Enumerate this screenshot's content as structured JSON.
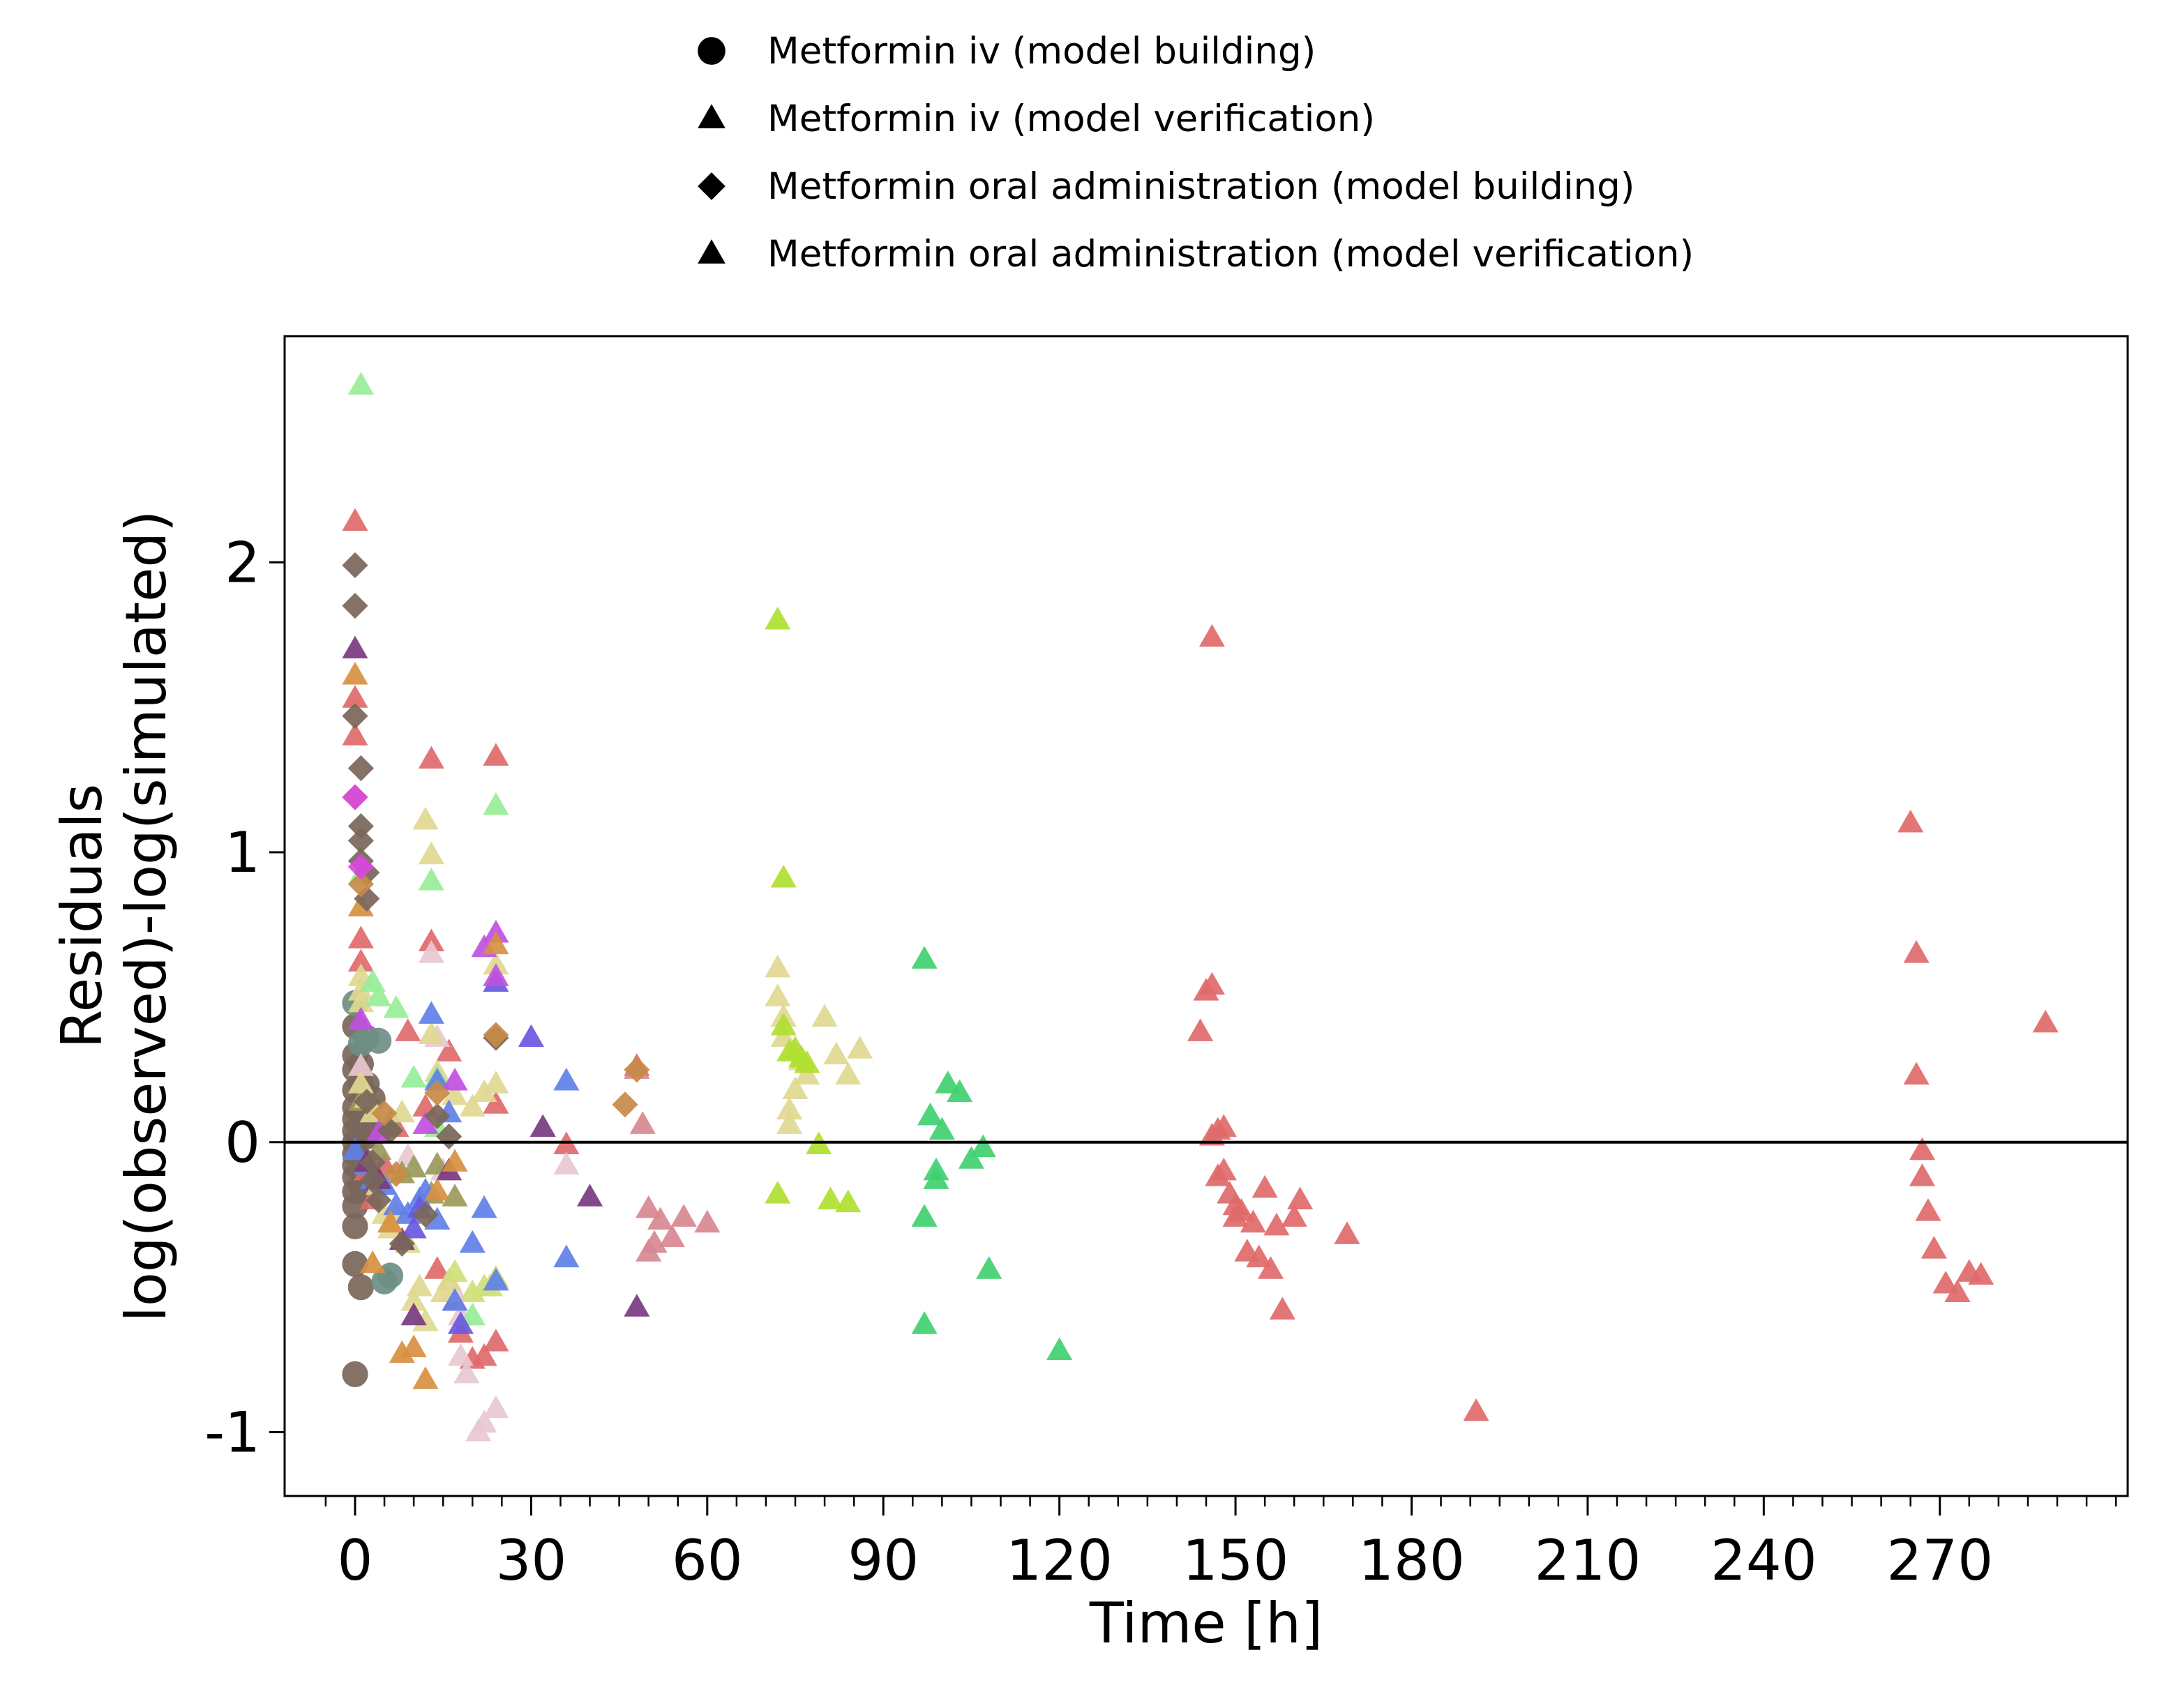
{
  "chart_data": {
    "type": "scatter",
    "title": "",
    "xlabel": "Time [h]",
    "ylabel_lines": [
      "Residuals",
      "log(observed)-log(simulated)"
    ],
    "xlim": [
      -12,
      302
    ],
    "ylim": [
      -1.22,
      2.78
    ],
    "xticks": [
      0,
      30,
      60,
      90,
      120,
      150,
      180,
      210,
      240,
      270
    ],
    "xtick_labels": [
      "0",
      "30",
      "60",
      "90",
      "120",
      "150",
      "180",
      "210",
      "240",
      "270"
    ],
    "xminor_step": 5,
    "yticks": [
      -1,
      0,
      1,
      2
    ],
    "ytick_labels": [
      "-1",
      "0",
      "1",
      "2"
    ],
    "reference_line_y": 0,
    "grid": false,
    "legend_placement": "top-center, above plot",
    "legend": [
      {
        "marker": "circle",
        "label": "Metformin iv (model building)"
      },
      {
        "marker": "triangle",
        "label": "Metformin iv (model verification)"
      },
      {
        "marker": "diamond",
        "label": "Metformin oral administration (model building)"
      },
      {
        "marker": "triangle",
        "label": "Metformin oral administration (model verification)"
      }
    ],
    "groups": [
      {
        "marker": "circle",
        "color": "#7a665a",
        "points": [
          [
            0,
            0.4
          ],
          [
            0,
            0.3
          ],
          [
            0,
            0.25
          ],
          [
            0,
            0.18
          ],
          [
            0,
            0.12
          ],
          [
            0,
            0.08
          ],
          [
            0,
            0.04
          ],
          [
            0,
            0
          ],
          [
            0,
            -0.04
          ],
          [
            0,
            -0.08
          ],
          [
            0,
            -0.12
          ],
          [
            0,
            -0.17
          ],
          [
            0,
            -0.22
          ],
          [
            0,
            -0.29
          ],
          [
            0,
            -0.42
          ],
          [
            0,
            -0.8
          ],
          [
            1,
            0.27
          ],
          [
            1,
            0.2
          ],
          [
            1,
            0.1
          ],
          [
            1,
            0.02
          ],
          [
            1,
            -0.06
          ],
          [
            1,
            -0.15
          ],
          [
            1,
            -0.5
          ],
          [
            2,
            0.2
          ],
          [
            2,
            0.08
          ],
          [
            2,
            0.02
          ],
          [
            3,
            0.15
          ],
          [
            3,
            0.05
          ]
        ]
      },
      {
        "marker": "circle",
        "color": "#6e8e82",
        "points": [
          [
            0,
            0.48
          ],
          [
            1,
            0.34
          ],
          [
            2,
            0.36
          ],
          [
            4,
            0.35
          ],
          [
            5,
            -0.48
          ],
          [
            6,
            -0.46
          ]
        ]
      },
      {
        "marker": "triangle",
        "color": "#e06a6a",
        "points": [
          [
            0,
            2.14
          ],
          [
            0,
            1.53
          ],
          [
            0,
            1.4
          ],
          [
            1,
            0.7
          ],
          [
            1,
            0.62
          ],
          [
            2,
            -0.1
          ],
          [
            3,
            -0.2
          ],
          [
            5,
            -0.08
          ],
          [
            7,
            0.05
          ],
          [
            9,
            0.38
          ],
          [
            12,
            0.12
          ],
          [
            13,
            1.32
          ],
          [
            13,
            0.69
          ],
          [
            14,
            -0.44
          ],
          [
            16,
            0.31
          ],
          [
            17,
            -0.55
          ],
          [
            18,
            -0.66
          ],
          [
            20,
            -0.75
          ],
          [
            22,
            -0.74
          ],
          [
            24,
            -0.69
          ],
          [
            24,
            1.33
          ],
          [
            24,
            0.13
          ],
          [
            36,
            -0.01
          ],
          [
            48,
            0.26
          ],
          [
            146,
            1.74
          ],
          [
            144,
            0.38
          ],
          [
            145,
            0.52
          ],
          [
            146,
            0.54
          ],
          [
            147,
            0.04
          ],
          [
            148,
            0.05
          ],
          [
            146,
            0.02
          ],
          [
            147,
            -0.12
          ],
          [
            148,
            -0.1
          ],
          [
            149,
            -0.18
          ],
          [
            150,
            -0.22
          ],
          [
            150,
            -0.26
          ],
          [
            151,
            -0.24
          ],
          [
            152,
            -0.38
          ],
          [
            153,
            -0.28
          ],
          [
            154,
            -0.4
          ],
          [
            155,
            -0.16
          ],
          [
            156,
            -0.44
          ],
          [
            157,
            -0.29
          ],
          [
            158,
            -0.58
          ],
          [
            160,
            -0.26
          ],
          [
            161,
            -0.2
          ],
          [
            169,
            -0.32
          ],
          [
            191,
            -0.93
          ],
          [
            265,
            1.1
          ],
          [
            266,
            0.65
          ],
          [
            266,
            0.23
          ],
          [
            267,
            -0.03
          ],
          [
            267,
            -0.12
          ],
          [
            268,
            -0.24
          ],
          [
            269,
            -0.37
          ],
          [
            271,
            -0.49
          ],
          [
            273,
            -0.52
          ],
          [
            275,
            -0.45
          ],
          [
            277,
            -0.46
          ],
          [
            288,
            0.41
          ]
        ]
      },
      {
        "marker": "triangle",
        "color": "#e8c8d0",
        "points": [
          [
            1,
            0.26
          ],
          [
            5,
            -0.15
          ],
          [
            9,
            -0.05
          ],
          [
            13,
            0.65
          ],
          [
            14,
            0.36
          ],
          [
            15,
            -0.1
          ],
          [
            17,
            -0.52
          ],
          [
            18,
            -0.6
          ],
          [
            18,
            -0.74
          ],
          [
            19,
            -0.8
          ],
          [
            21,
            -1.0
          ],
          [
            22,
            -0.97
          ],
          [
            24,
            -0.92
          ],
          [
            36,
            -0.08
          ]
        ]
      },
      {
        "marker": "triangle",
        "color": "#d88890",
        "points": [
          [
            48,
            0.25
          ],
          [
            49,
            0.06
          ],
          [
            50,
            -0.23
          ],
          [
            50,
            -0.38
          ],
          [
            51,
            -0.35
          ],
          [
            52,
            -0.27
          ],
          [
            54,
            -0.33
          ],
          [
            56,
            -0.26
          ],
          [
            60,
            -0.28
          ]
        ]
      },
      {
        "marker": "triangle",
        "color": "#9a9a5a",
        "points": [
          [
            1,
            0.14
          ],
          [
            2,
            -0.07
          ],
          [
            4,
            -0.03
          ],
          [
            6,
            0.07
          ],
          [
            8,
            -0.11
          ],
          [
            10,
            -0.09
          ],
          [
            13,
            -0.18
          ],
          [
            14,
            -0.08
          ],
          [
            17,
            -0.19
          ]
        ]
      },
      {
        "marker": "triangle",
        "color": "#e0d890",
        "points": [
          [
            1,
            0.57
          ],
          [
            1,
            0.52
          ],
          [
            1,
            0.48
          ],
          [
            1,
            0.2
          ],
          [
            2,
            0.15
          ],
          [
            3,
            0.1
          ],
          [
            4,
            -0.15
          ],
          [
            5,
            -0.25
          ],
          [
            6,
            -0.3
          ],
          [
            7,
            -0.25
          ],
          [
            8,
            0.1
          ],
          [
            9,
            -0.35
          ],
          [
            10,
            -0.55
          ],
          [
            11,
            -0.5
          ],
          [
            12,
            -0.62
          ],
          [
            12,
            1.11
          ],
          [
            13,
            0.99
          ],
          [
            13,
            0.37
          ],
          [
            14,
            0.24
          ],
          [
            15,
            -0.52
          ],
          [
            16,
            -0.48
          ],
          [
            17,
            0.16
          ],
          [
            20,
            0.12
          ],
          [
            22,
            0.17
          ],
          [
            24,
            0.2
          ],
          [
            24,
            0.61
          ],
          [
            72,
            0.6
          ],
          [
            72,
            0.5
          ],
          [
            73,
            0.43
          ],
          [
            73,
            0.36
          ],
          [
            74,
            0.11
          ],
          [
            74,
            0.06
          ],
          [
            75,
            0.18
          ],
          [
            76,
            0.28
          ],
          [
            77,
            0.23
          ],
          [
            80,
            0.43
          ],
          [
            82,
            0.3
          ],
          [
            84,
            0.23
          ],
          [
            86,
            0.32
          ]
        ]
      },
      {
        "marker": "triangle",
        "color": "#b0e030",
        "points": [
          [
            72,
            1.8
          ],
          [
            72,
            -0.18
          ],
          [
            73,
            0.91
          ],
          [
            73,
            0.4
          ],
          [
            74,
            0.31
          ],
          [
            75,
            0.32
          ],
          [
            76,
            0.29
          ],
          [
            77,
            0.27
          ],
          [
            79,
            -0.01
          ],
          [
            81,
            -0.2
          ],
          [
            84,
            -0.21
          ]
        ]
      },
      {
        "marker": "triangle",
        "color": "#cfe07a",
        "points": [
          [
            17,
            -0.45
          ],
          [
            20,
            -0.52
          ],
          [
            22,
            -0.5
          ],
          [
            23,
            -0.5
          ],
          [
            24,
            -0.47
          ]
        ]
      },
      {
        "marker": "triangle",
        "color": "#98ee98",
        "points": [
          [
            1,
            2.61
          ],
          [
            1,
            0.92
          ],
          [
            3,
            0.55
          ],
          [
            4,
            0.5
          ],
          [
            7,
            0.46
          ],
          [
            10,
            0.22
          ],
          [
            13,
            0.9
          ],
          [
            14,
            0.22
          ],
          [
            14,
            0.05
          ],
          [
            20,
            -0.6
          ],
          [
            24,
            1.16
          ]
        ]
      },
      {
        "marker": "triangle",
        "color": "#40d070",
        "points": [
          [
            97,
            0.63
          ],
          [
            97,
            -0.26
          ],
          [
            97,
            -0.63
          ],
          [
            98,
            0.09
          ],
          [
            99,
            -0.13
          ],
          [
            99,
            -0.1
          ],
          [
            100,
            0.04
          ],
          [
            101,
            0.2
          ],
          [
            103,
            0.17
          ],
          [
            105,
            -0.06
          ],
          [
            107,
            -0.02
          ],
          [
            108,
            -0.44
          ],
          [
            120,
            -0.72
          ]
        ]
      },
      {
        "marker": "triangle",
        "color": "#6080e8",
        "points": [
          [
            0,
            -0.03
          ],
          [
            2,
            -0.08
          ],
          [
            3,
            -0.13
          ],
          [
            5,
            -0.15
          ],
          [
            7,
            -0.22
          ],
          [
            9,
            -0.25
          ],
          [
            11,
            -0.2
          ],
          [
            12,
            -0.17
          ],
          [
            13,
            0.44
          ],
          [
            14,
            0.21
          ],
          [
            14,
            -0.27
          ],
          [
            16,
            0.1
          ],
          [
            17,
            -0.55
          ],
          [
            20,
            -0.35
          ],
          [
            22,
            -0.23
          ],
          [
            24,
            -0.48
          ],
          [
            36,
            0.21
          ],
          [
            36,
            -0.4
          ]
        ]
      },
      {
        "marker": "triangle",
        "color": "#6a58e0",
        "points": [
          [
            10,
            -0.3
          ],
          [
            11,
            -0.23
          ],
          [
            18,
            -0.63
          ],
          [
            24,
            0.55
          ],
          [
            30,
            0.36
          ]
        ]
      },
      {
        "marker": "triangle",
        "color": "#c050e0",
        "points": [
          [
            1,
            0.42
          ],
          [
            4,
            0.03
          ],
          [
            12,
            0.06
          ],
          [
            17,
            0.21
          ],
          [
            22,
            0.67
          ],
          [
            24,
            0.72
          ],
          [
            24,
            0.57
          ]
        ]
      },
      {
        "marker": "triangle",
        "color": "#7a3a80",
        "points": [
          [
            0,
            1.7
          ],
          [
            2,
            -0.07
          ],
          [
            4,
            -0.13
          ],
          [
            8,
            -0.34
          ],
          [
            10,
            -0.6
          ],
          [
            16,
            -0.1
          ],
          [
            32,
            0.05
          ],
          [
            40,
            -0.19
          ],
          [
            48,
            -0.57
          ]
        ]
      },
      {
        "marker": "triangle",
        "color": "#d89040",
        "points": [
          [
            0,
            1.61
          ],
          [
            1,
            0.81
          ],
          [
            3,
            -0.42
          ],
          [
            6,
            -0.28
          ],
          [
            8,
            -0.73
          ],
          [
            10,
            -0.71
          ],
          [
            12,
            -0.82
          ],
          [
            14,
            -0.17
          ],
          [
            17,
            -0.07
          ],
          [
            24,
            0.68
          ]
        ]
      },
      {
        "marker": "diamond",
        "color": "#7a665a",
        "points": [
          [
            0,
            1.99
          ],
          [
            0,
            1.85
          ],
          [
            0,
            1.47
          ],
          [
            1,
            1.29
          ],
          [
            1,
            1.09
          ],
          [
            1,
            1.04
          ],
          [
            1,
            0.97
          ],
          [
            2,
            0.93
          ],
          [
            2,
            0.84
          ],
          [
            2,
            0.14
          ],
          [
            3,
            -0.07
          ],
          [
            3,
            -0.13
          ],
          [
            4,
            -0.2
          ],
          [
            6,
            0.04
          ],
          [
            8,
            -0.35
          ],
          [
            12,
            -0.25
          ],
          [
            14,
            0.09
          ],
          [
            16,
            0.02
          ],
          [
            24,
            0.36
          ]
        ]
      },
      {
        "marker": "diamond",
        "color": "#c88a48",
        "points": [
          [
            0,
            1.19
          ],
          [
            1,
            0.89
          ],
          [
            5,
            0.1
          ],
          [
            7,
            -0.11
          ],
          [
            14,
            0.17
          ],
          [
            24,
            0.37
          ],
          [
            46,
            0.13
          ],
          [
            48,
            0.25
          ]
        ]
      },
      {
        "marker": "diamond",
        "color": "#d848e0",
        "points": [
          [
            0,
            1.19
          ],
          [
            1,
            0.95
          ]
        ]
      }
    ]
  }
}
